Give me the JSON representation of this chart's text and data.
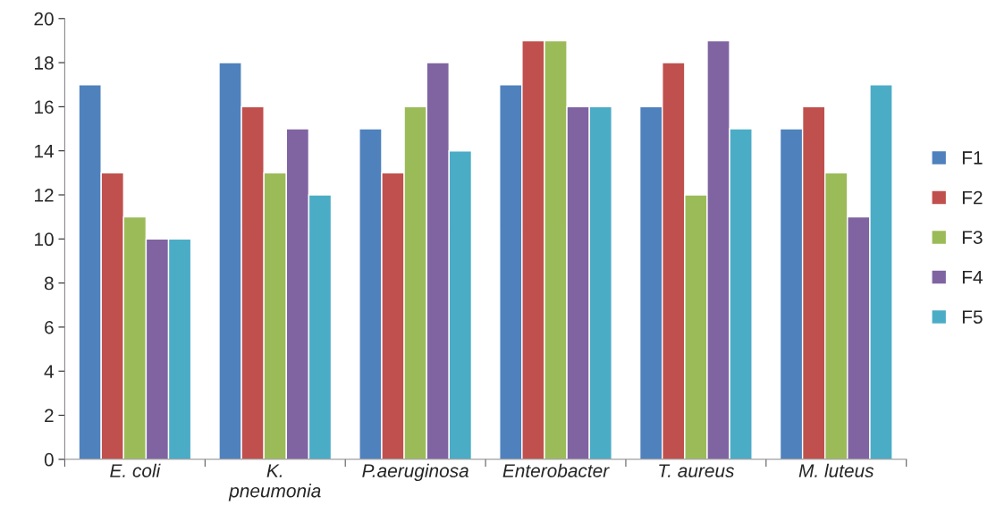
{
  "chart_data": {
    "type": "bar",
    "categories": [
      "E. coli",
      "K.\npneumonia",
      "P.aeruginosa",
      "Enterobacter",
      "T. aureus",
      "M. luteus"
    ],
    "series": [
      {
        "name": "F1",
        "color": "#4f81bd",
        "values": [
          17,
          18,
          15,
          17,
          16,
          15
        ]
      },
      {
        "name": "F2",
        "color": "#c0504d",
        "values": [
          13,
          16,
          13,
          19,
          18,
          16
        ]
      },
      {
        "name": "F3",
        "color": "#9bbb59",
        "values": [
          11,
          13,
          16,
          19,
          12,
          13
        ]
      },
      {
        "name": "F4",
        "color": "#8064a2",
        "values": [
          10,
          15,
          18,
          16,
          19,
          11
        ]
      },
      {
        "name": "F5",
        "color": "#4bacc6",
        "values": [
          10,
          12,
          14,
          16,
          15,
          17
        ]
      }
    ],
    "ylim": [
      0,
      20
    ],
    "yticks": [
      0,
      2,
      4,
      6,
      8,
      10,
      12,
      14,
      16,
      18,
      20
    ],
    "grid": false,
    "legend": "right"
  }
}
